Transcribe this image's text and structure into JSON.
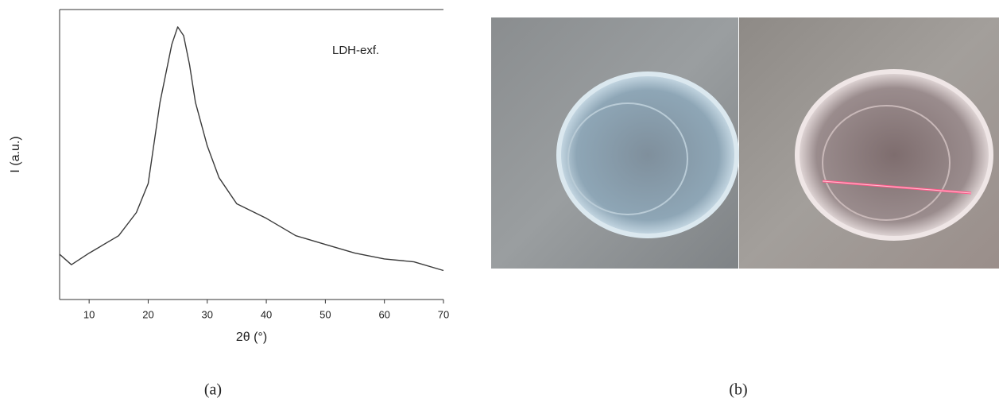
{
  "chart_data": {
    "type": "line",
    "label": "LDH-exf.",
    "x_label": "2θ (°)",
    "y_label": "I (a.u.)",
    "x": [
      5,
      7,
      10,
      15,
      18,
      20,
      22,
      24,
      25,
      26,
      27,
      28,
      30,
      32,
      35,
      40,
      45,
      50,
      55,
      60,
      65,
      70
    ],
    "series": [
      {
        "color": "#3a3a3a",
        "values": [
          15.6,
          12,
          16,
          22,
          30,
          40,
          68,
          88,
          94,
          91,
          81,
          68,
          53,
          42,
          33,
          28,
          22,
          19,
          16,
          14,
          13,
          10
        ]
      }
    ],
    "xlim": [
      5,
      70
    ],
    "ylim": [
      0,
      100
    ],
    "xticks": [
      10,
      20,
      30,
      40,
      50,
      60,
      70
    ]
  },
  "captions": {
    "a": "(a)",
    "b": "(b)"
  }
}
